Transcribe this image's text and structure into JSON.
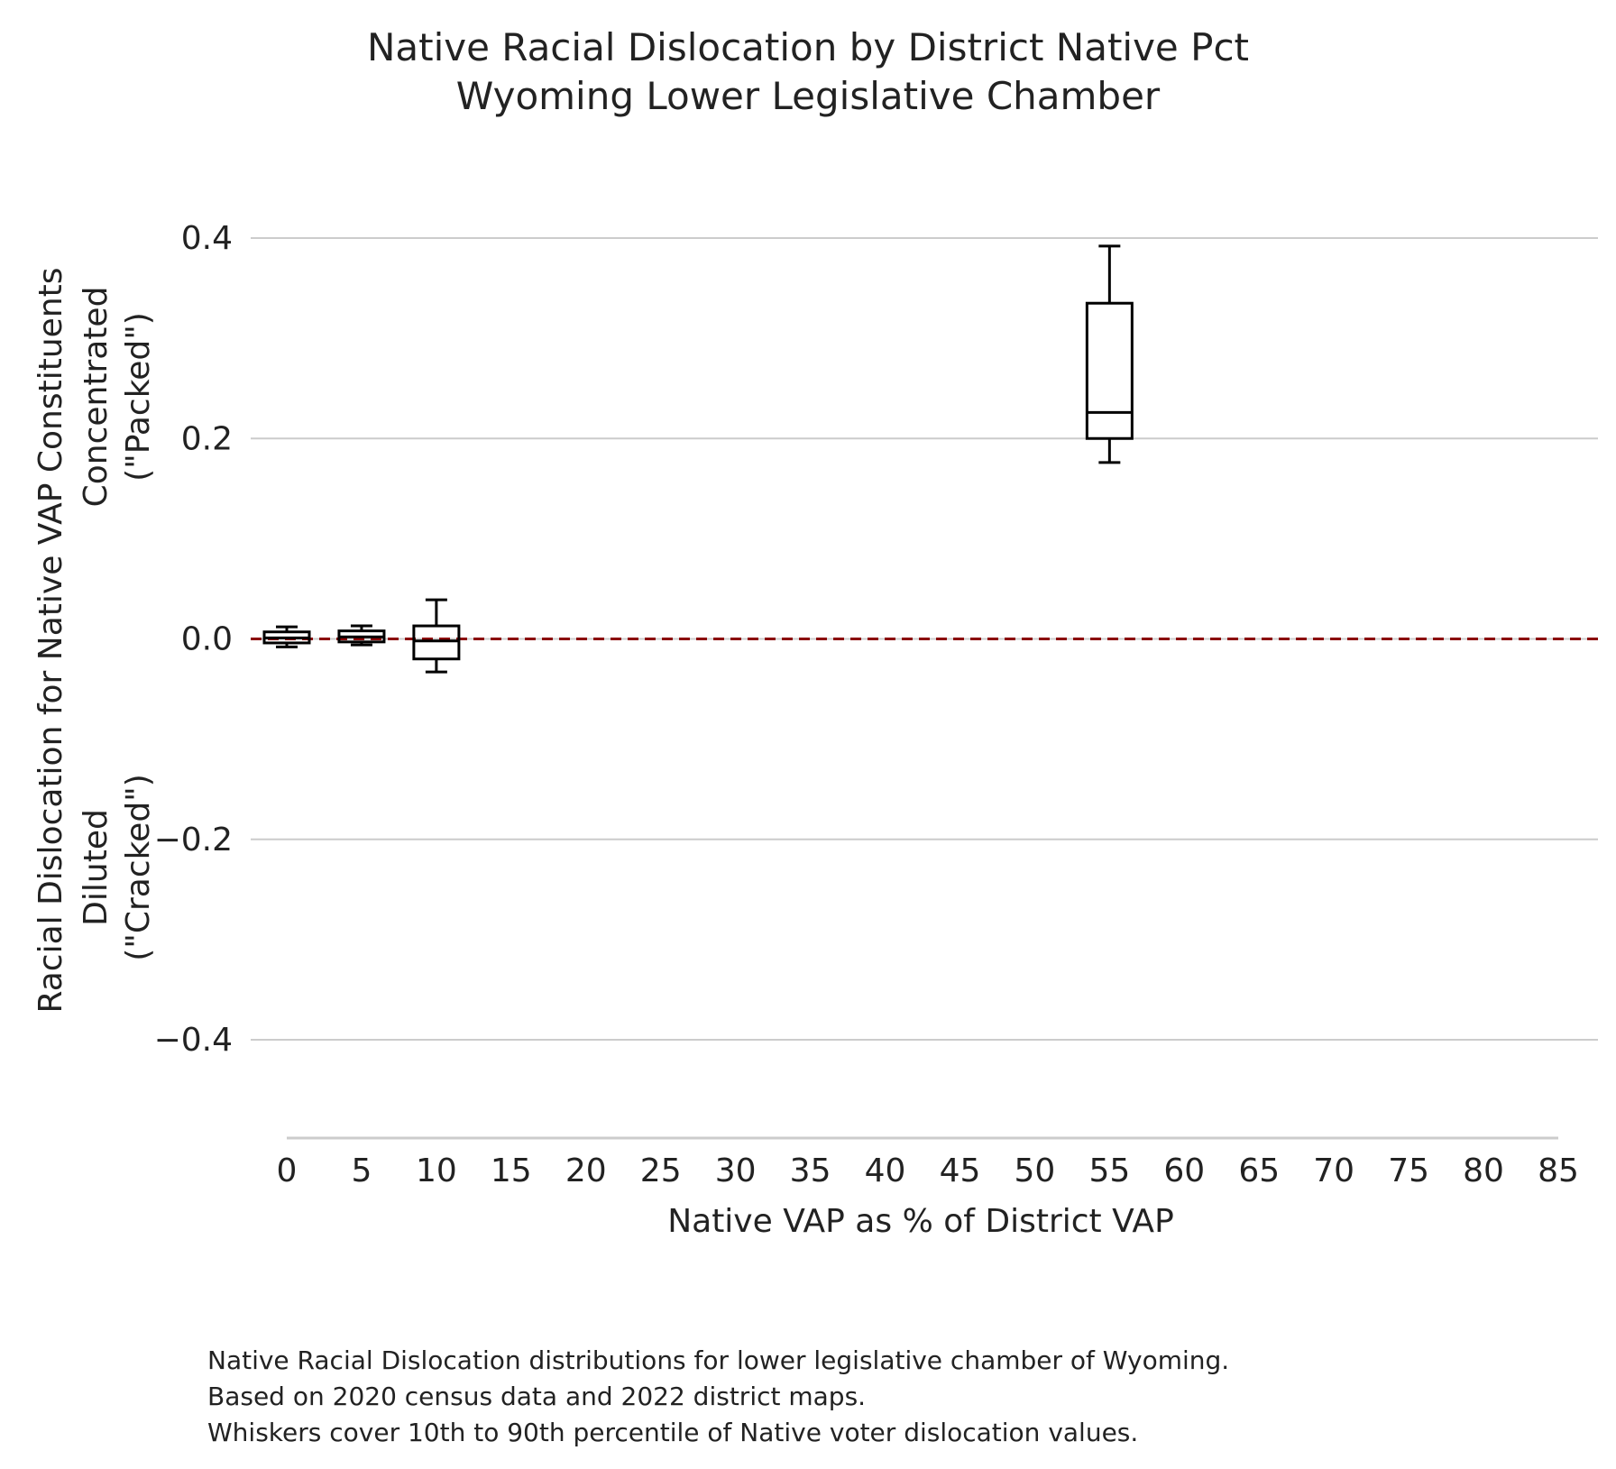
{
  "chart_data": {
    "type": "box",
    "title": "Native Racial Dislocation by District Native Pct",
    "subtitle": "Wyoming Lower Legislative Chamber",
    "xlabel": "Native VAP as % of District VAP",
    "ylabel": "Racial Dislocation for Native VAP Constituents",
    "ylabel_upper": [
      "Concentrated",
      "(\"Packed\")"
    ],
    "ylabel_lower": [
      "Diluted",
      "(\"Cracked\")"
    ],
    "xlim": [
      0,
      85
    ],
    "ylim": [
      -0.5,
      0.4
    ],
    "x_ticks": [
      "0",
      "5",
      "10",
      "15",
      "20",
      "25",
      "30",
      "35",
      "40",
      "45",
      "50",
      "55",
      "60",
      "65",
      "70",
      "75",
      "80",
      "85"
    ],
    "x_tick_values": [
      0,
      5,
      10,
      15,
      20,
      25,
      30,
      35,
      40,
      45,
      50,
      55,
      60,
      65,
      70,
      75,
      80,
      85
    ],
    "y_ticks": [
      "0.4",
      "0.2",
      "0.0",
      "−0.2",
      "−0.4"
    ],
    "y_tick_values": [
      0.4,
      0.2,
      0.0,
      -0.2,
      -0.4
    ],
    "grid": "horizontal",
    "reference_line": {
      "y": 0.0,
      "style": "dashed",
      "color": "#8b0000"
    },
    "boxes": [
      {
        "x": 0,
        "whisker_low": -0.008,
        "q1": -0.004,
        "median": 0.001,
        "q3": 0.007,
        "whisker_high": 0.012
      },
      {
        "x": 5,
        "whisker_low": -0.006,
        "q1": -0.003,
        "median": 0.002,
        "q3": 0.008,
        "whisker_high": 0.013
      },
      {
        "x": 10,
        "whisker_low": -0.033,
        "q1": -0.02,
        "median": -0.002,
        "q3": 0.013,
        "whisker_high": 0.039
      },
      {
        "x": 55,
        "whisker_low": 0.176,
        "q1": 0.2,
        "median": 0.226,
        "q3": 0.335,
        "whisker_high": 0.392
      }
    ],
    "box_color": "#000000",
    "grid_color": "#cccccc"
  },
  "caption": [
    "Native Racial Dislocation distributions for lower legislative chamber of Wyoming.",
    "Based on 2020 census data and 2022 district maps.",
    "Whiskers cover 10th to 90th percentile of Native voter dislocation values."
  ]
}
